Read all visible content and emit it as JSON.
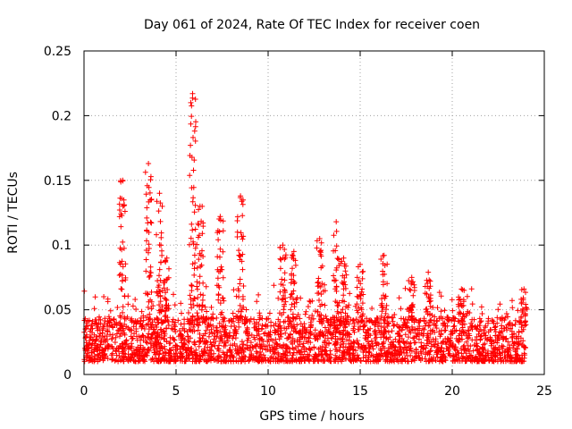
{
  "chart_data": {
    "type": "scatter",
    "title": "Day 061 of 2024, Rate Of TEC Index for receiver coen",
    "xlabel": "GPS time / hours",
    "ylabel": "ROTI / TECUs",
    "xlim": [
      0,
      25
    ],
    "ylim": [
      0,
      0.25
    ],
    "xticks": [
      0,
      5,
      10,
      15,
      20,
      25
    ],
    "xtick_labels": [
      "0",
      "5",
      "10",
      "15",
      "20",
      "25"
    ],
    "yticks": [
      0,
      0.05,
      0.1,
      0.15,
      0.2,
      0.25
    ],
    "ytick_labels": [
      "0",
      "0.05",
      "0.1",
      "0.15",
      "0.2",
      "0.25"
    ],
    "grid": true,
    "marker": "plus",
    "color": "#ff0000",
    "series": [
      {
        "name": "ROTI",
        "x_range": [
          0,
          24
        ],
        "baseline_band": [
          0.01,
          0.04
        ],
        "notable_spikes": [
          {
            "x": 2.1,
            "y": 0.15
          },
          {
            "x": 3.5,
            "y": 0.163
          },
          {
            "x": 4.1,
            "y": 0.14
          },
          {
            "x": 4.5,
            "y": 0.09
          },
          {
            "x": 5.9,
            "y": 0.217
          },
          {
            "x": 6.3,
            "y": 0.13
          },
          {
            "x": 7.4,
            "y": 0.122
          },
          {
            "x": 8.5,
            "y": 0.138
          },
          {
            "x": 10.8,
            "y": 0.1
          },
          {
            "x": 11.4,
            "y": 0.095
          },
          {
            "x": 12.8,
            "y": 0.105
          },
          {
            "x": 13.7,
            "y": 0.118
          },
          {
            "x": 14.1,
            "y": 0.09
          },
          {
            "x": 15.0,
            "y": 0.085
          },
          {
            "x": 16.3,
            "y": 0.092
          },
          {
            "x": 17.8,
            "y": 0.075
          },
          {
            "x": 18.7,
            "y": 0.079
          },
          {
            "x": 20.5,
            "y": 0.066
          },
          {
            "x": 23.9,
            "y": 0.066
          }
        ]
      }
    ]
  }
}
